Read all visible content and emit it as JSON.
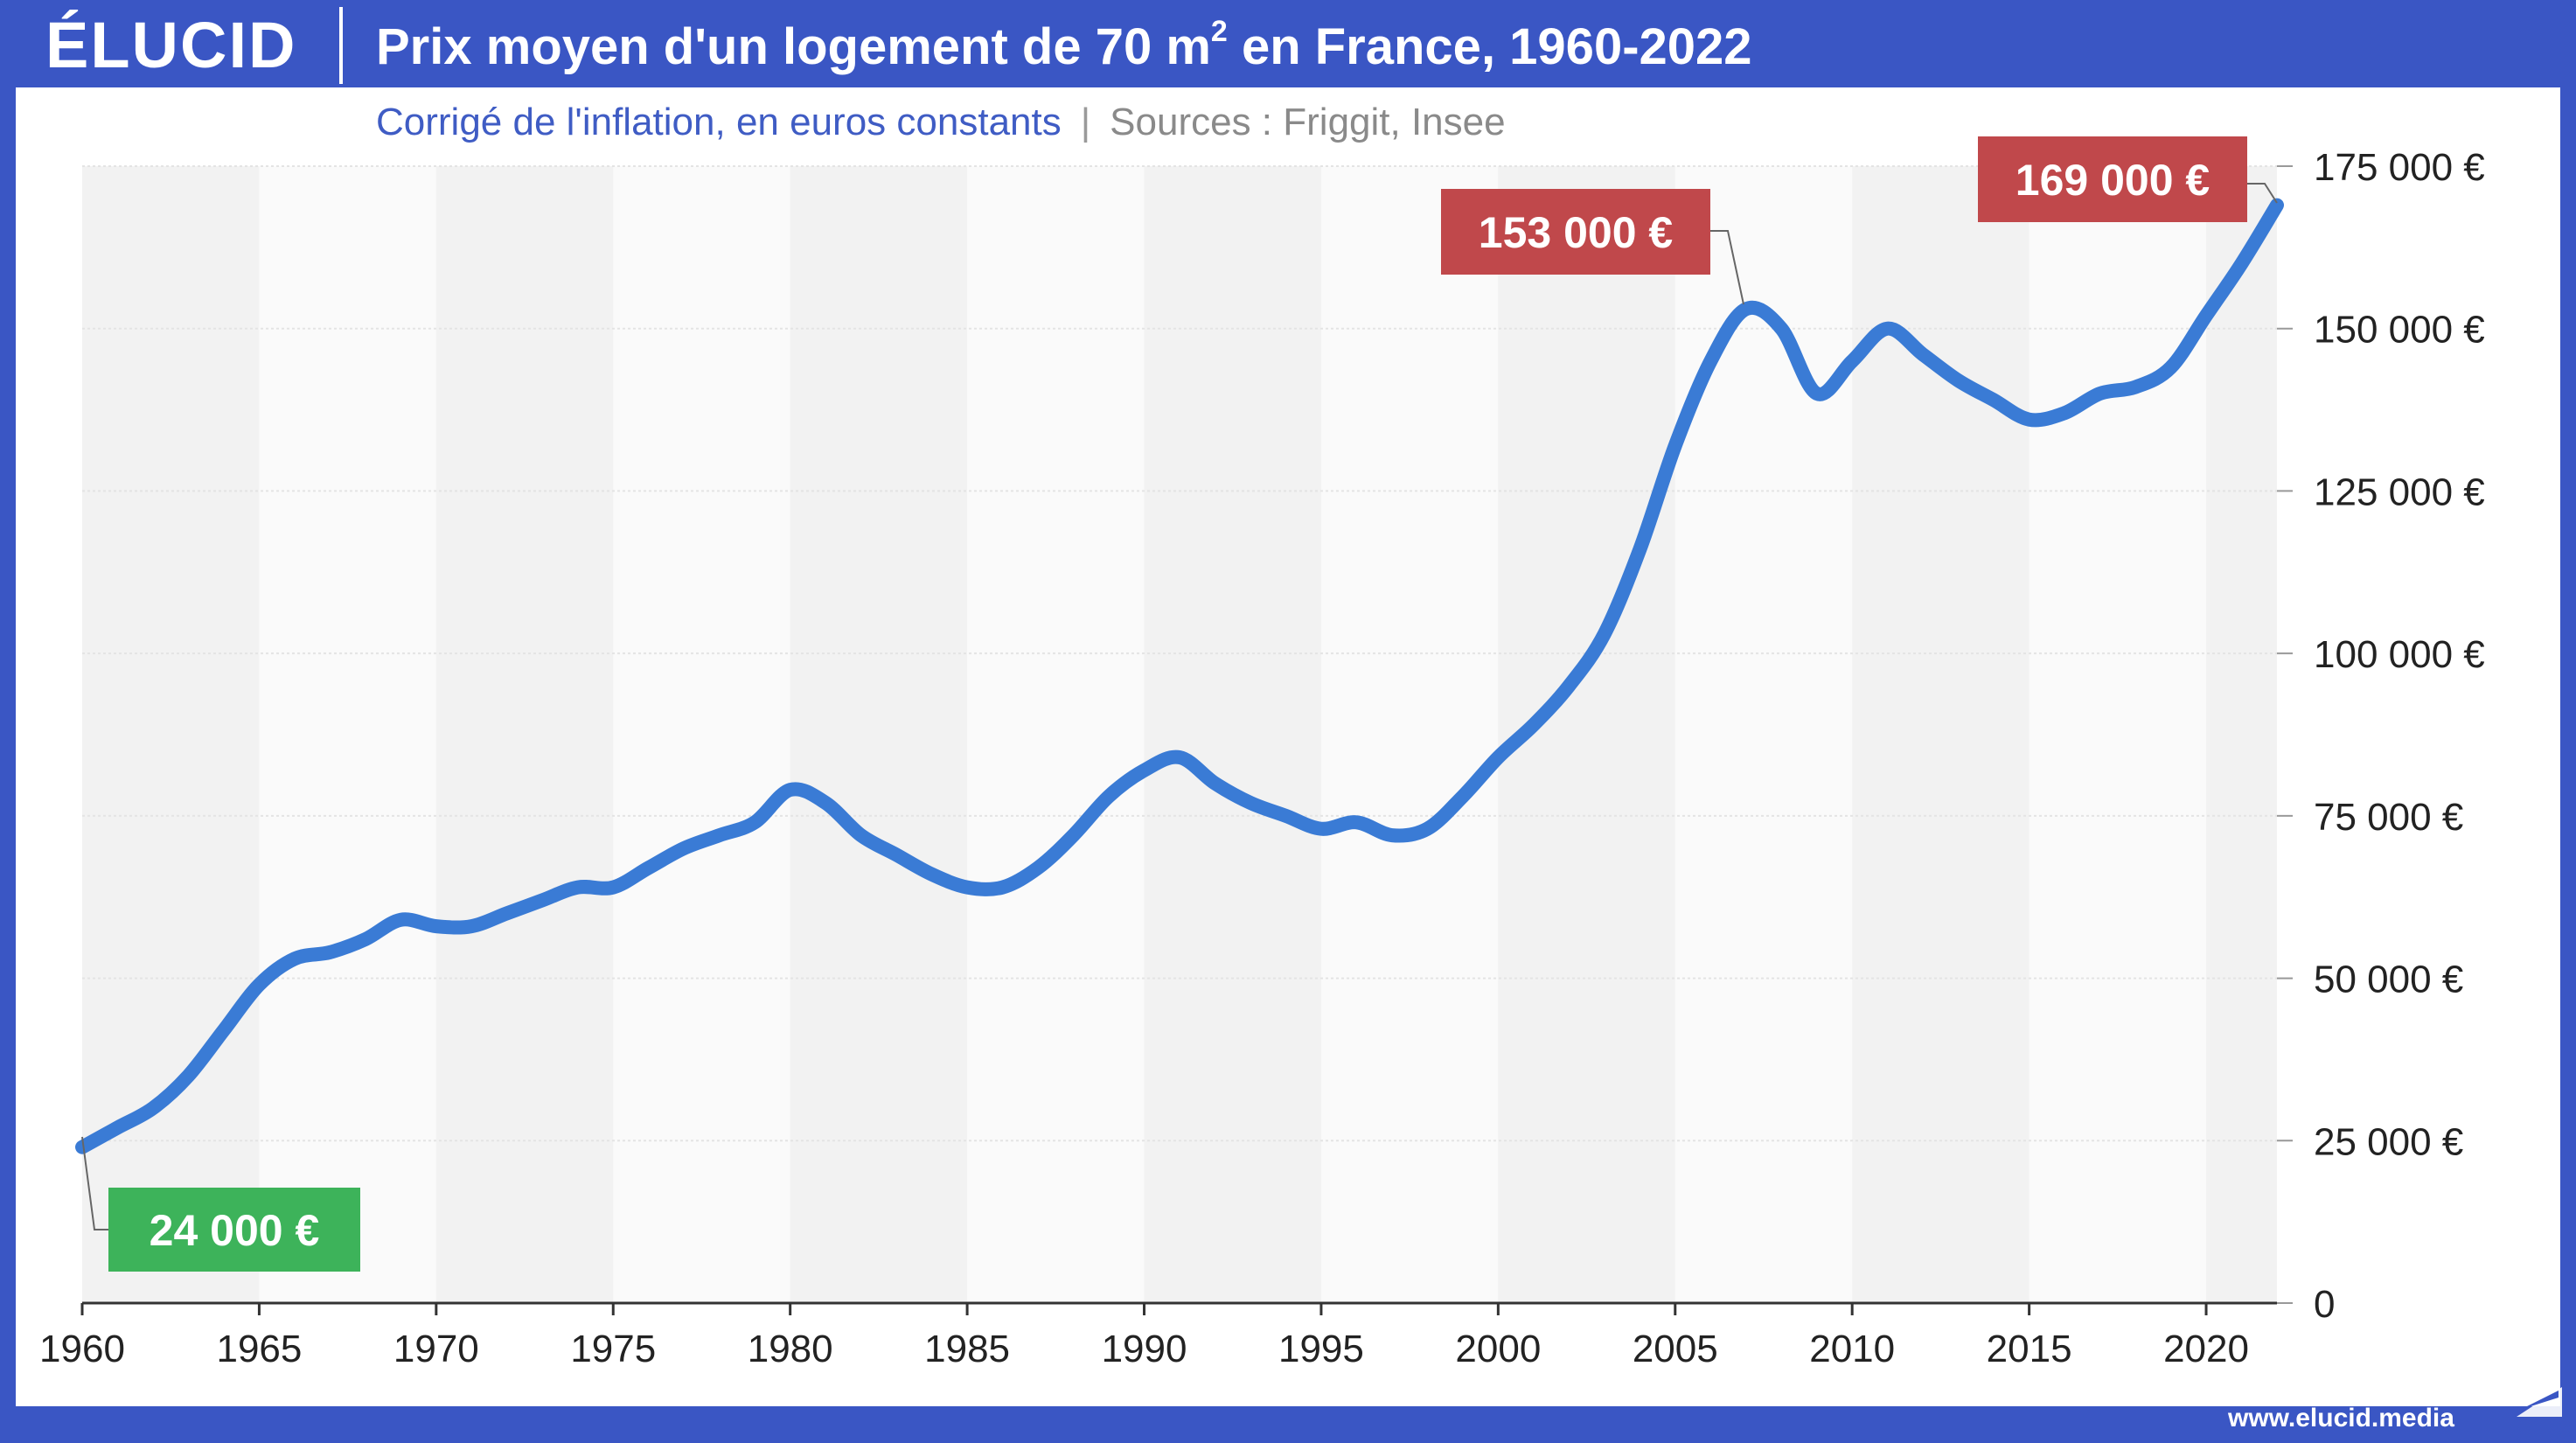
{
  "header": {
    "logo": "ÉLUCID",
    "title_main": "Prix moyen d'un logement de 70 m",
    "title_sup": "2",
    "title_end": " en France, 1960-2022",
    "subtitle": "Corrigé de l'inflation, en euros constants",
    "separator": "|",
    "sources": "Sources : Friggit, Insee"
  },
  "footer": {
    "url": "www.elucid.media"
  },
  "colors": {
    "background": "#3a56c4",
    "line": "#3a7bd5",
    "label_green": "#3db35a",
    "label_red": "#c0484b",
    "band": "#f2f2f2"
  },
  "chart_data": {
    "type": "line",
    "title": "Prix moyen d'un logement de 70 m2 en France, 1960-2022",
    "subtitle": "Corrigé de l'inflation, en euros constants",
    "xlabel": "",
    "ylabel": "",
    "xlim": [
      1960,
      2022
    ],
    "ylim": [
      0,
      175000
    ],
    "grid": true,
    "x_ticks": [
      1960,
      1965,
      1970,
      1975,
      1980,
      1985,
      1990,
      1995,
      2000,
      2005,
      2010,
      2015,
      2020
    ],
    "x_tick_labels": [
      "1960",
      "1965",
      "1970",
      "1975",
      "1980",
      "1985",
      "1990",
      "1995",
      "2000",
      "2005",
      "2010",
      "2015",
      "2020"
    ],
    "y_ticks": [
      0,
      25000,
      50000,
      75000,
      100000,
      125000,
      150000,
      175000
    ],
    "y_tick_labels": [
      "0",
      "25 000 €",
      "50 000 €",
      "75 000 €",
      "100 000 €",
      "125 000 €",
      "150 000 €",
      "175 000 €"
    ],
    "series": [
      {
        "x": [
          1960,
          1961,
          1962,
          1963,
          1964,
          1965,
          1966,
          1967,
          1968,
          1969,
          1970,
          1971,
          1972,
          1973,
          1974,
          1975,
          1976,
          1977,
          1978,
          1979,
          1980,
          1981,
          1982,
          1983,
          1984,
          1985,
          1986,
          1987,
          1988,
          1989,
          1990,
          1991,
          1992,
          1993,
          1994,
          1995,
          1996,
          1997,
          1998,
          1999,
          2000,
          2001,
          2002,
          2003,
          2004,
          2005,
          2006,
          2007,
          2008,
          2009,
          2010,
          2011,
          2012,
          2013,
          2014,
          2015,
          2016,
          2017,
          2018,
          2019,
          2020,
          2021,
          2022
        ],
        "y": [
          24000,
          27000,
          30000,
          35000,
          42000,
          49000,
          53000,
          54000,
          56000,
          59000,
          58000,
          58000,
          60000,
          62000,
          64000,
          64000,
          67000,
          70000,
          72000,
          74000,
          79000,
          77000,
          72000,
          69000,
          66000,
          64000,
          64000,
          67000,
          72000,
          78000,
          82000,
          84000,
          80000,
          77000,
          75000,
          73000,
          74000,
          72000,
          73000,
          78000,
          84000,
          89000,
          95000,
          103000,
          116000,
          132000,
          145000,
          153000,
          150000,
          140000,
          145000,
          150000,
          146000,
          142000,
          139000,
          136000,
          137000,
          140000,
          141000,
          144000,
          152000,
          160000,
          169000
        ]
      }
    ],
    "annotations": [
      {
        "x": 1960,
        "y": 24000,
        "text": "24 000 €",
        "color": "#3db35a"
      },
      {
        "x": 2007,
        "y": 153000,
        "text": "153 000 €",
        "color": "#c0484b"
      },
      {
        "x": 2022,
        "y": 169000,
        "text": "169 000 €",
        "color": "#c0484b"
      }
    ]
  }
}
